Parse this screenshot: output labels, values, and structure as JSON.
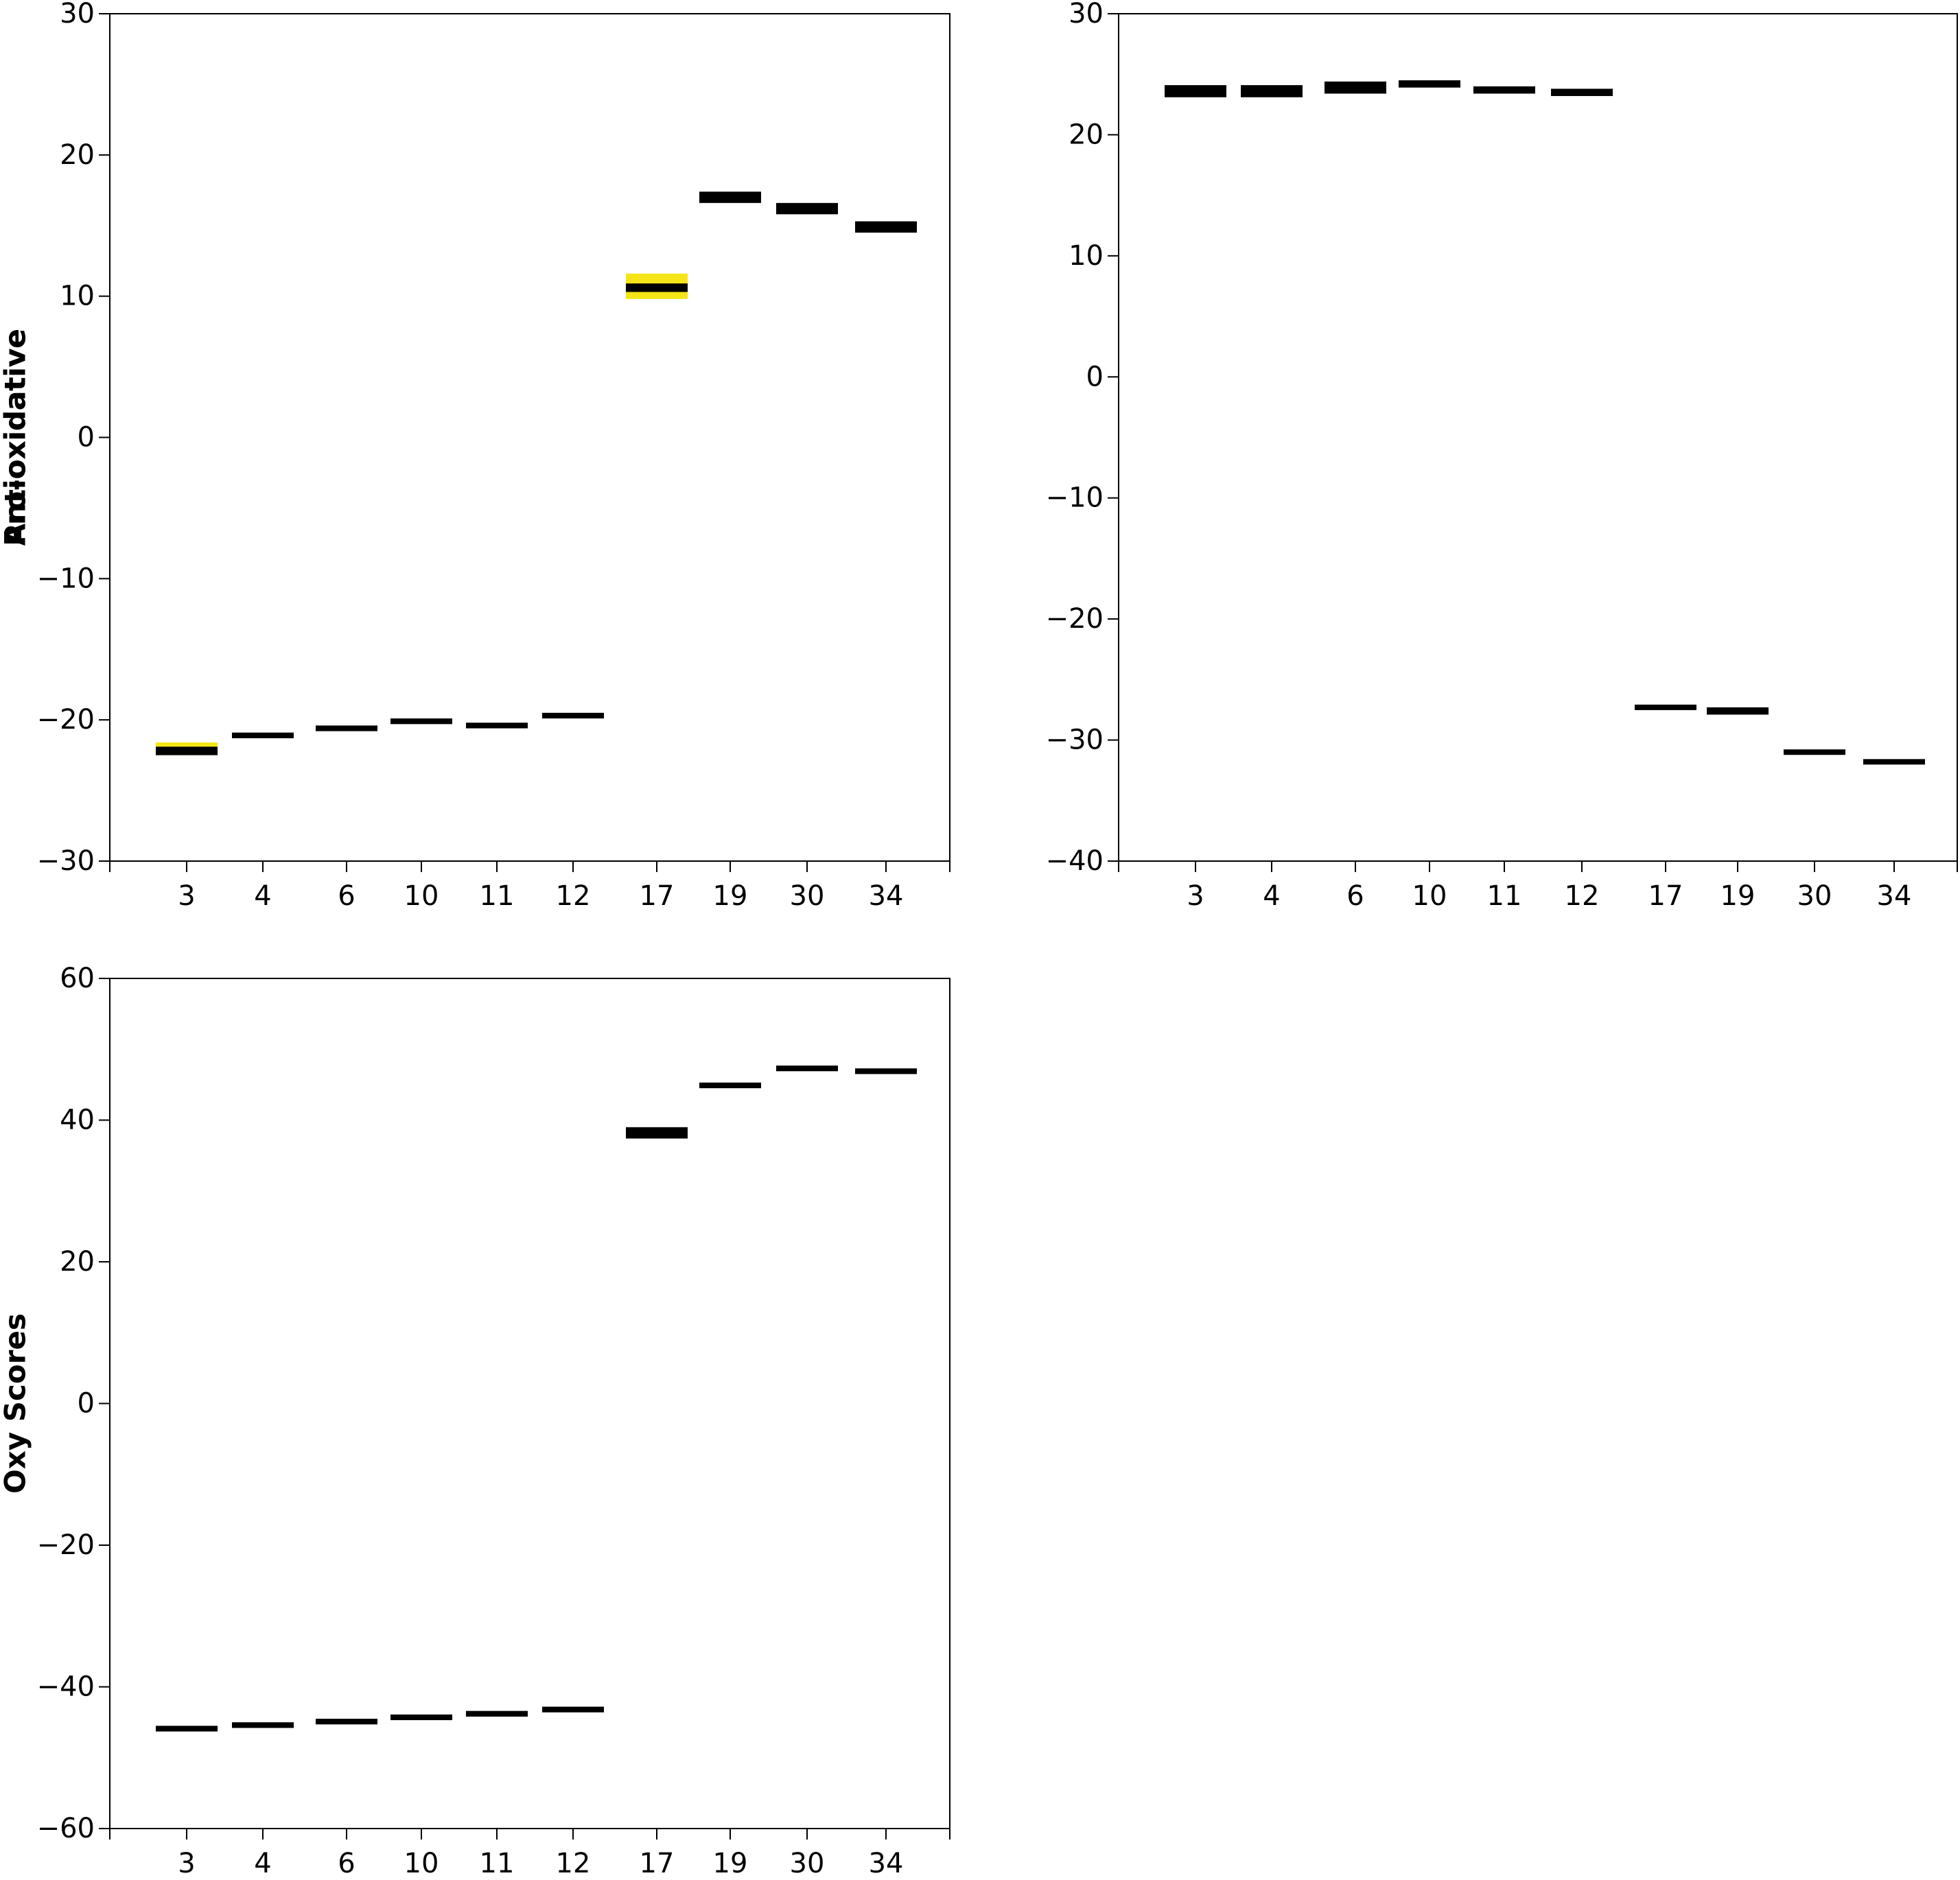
{
  "figure": {
    "background": "#ffffff",
    "mark_color": "#000000",
    "highlight_color": "#f5e416"
  },
  "chart_data": [
    {
      "type": "range",
      "panel": "top-left",
      "title": "",
      "xlabel": "",
      "ylabel": "Pro-oxidative",
      "ylim": [
        -30,
        30
      ],
      "yticks": [
        -30,
        -20,
        -10,
        0,
        10,
        20,
        30
      ],
      "ytick_labels": [
        "−30",
        "−20",
        "−10",
        "0",
        "10",
        "20",
        "30"
      ],
      "categories": [
        "3",
        "4",
        "6",
        "10",
        "11",
        "12",
        "17",
        "19",
        "30",
        "34"
      ],
      "series": [
        {
          "values": [
            -22.2,
            -21.1,
            -20.6,
            -20.1,
            -20.4,
            -19.7,
            10.6,
            17.0,
            16.2,
            14.9
          ],
          "low": [
            -22.5,
            -21.3,
            -20.8,
            -20.3,
            -20.6,
            -19.9,
            10.3,
            16.6,
            15.8,
            14.5
          ],
          "high": [
            -21.9,
            -20.9,
            -20.4,
            -19.9,
            -20.2,
            -19.5,
            10.9,
            17.4,
            16.6,
            15.3
          ],
          "highlight_low": [
            -22.3,
            null,
            null,
            null,
            null,
            null,
            9.8,
            null,
            null,
            null
          ],
          "highlight_high": [
            -21.6,
            null,
            null,
            null,
            null,
            null,
            11.6,
            null,
            null,
            null
          ]
        }
      ],
      "grid": false,
      "legend": "none"
    },
    {
      "type": "range",
      "panel": "top-right",
      "title": "",
      "xlabel": "",
      "ylabel": "Antioxidative",
      "ylim": [
        -40,
        30
      ],
      "yticks": [
        -40,
        -30,
        -20,
        -10,
        0,
        10,
        20,
        30
      ],
      "ytick_labels": [
        "−40",
        "−30",
        "−20",
        "−10",
        "0",
        "10",
        "20",
        "30"
      ],
      "categories": [
        "3",
        "4",
        "6",
        "10",
        "11",
        "12",
        "17",
        "19",
        "30",
        "34"
      ],
      "series": [
        {
          "values": [
            23.6,
            23.6,
            23.9,
            24.2,
            23.7,
            23.5,
            -27.3,
            -27.6,
            -31.0,
            -31.8
          ],
          "low": [
            23.1,
            23.1,
            23.4,
            23.9,
            23.4,
            23.2,
            -27.5,
            -27.9,
            -31.2,
            -32.0
          ],
          "high": [
            24.1,
            24.1,
            24.4,
            24.5,
            24.0,
            23.8,
            -27.1,
            -27.3,
            -30.8,
            -31.6
          ],
          "highlight_low": [
            null,
            null,
            null,
            null,
            null,
            null,
            null,
            null,
            null,
            null
          ],
          "highlight_high": [
            null,
            null,
            null,
            null,
            null,
            null,
            null,
            null,
            null,
            null
          ]
        }
      ],
      "grid": false,
      "legend": "none"
    },
    {
      "type": "range",
      "panel": "bottom-left",
      "title": "",
      "xlabel": "",
      "ylabel": "Oxy Scores",
      "ylim": [
        -60,
        60
      ],
      "yticks": [
        -60,
        -40,
        -20,
        0,
        20,
        40,
        60
      ],
      "ytick_labels": [
        "−60",
        "−40",
        "−20",
        "0",
        "20",
        "40",
        "60"
      ],
      "categories": [
        "3",
        "4",
        "6",
        "10",
        "11",
        "12",
        "17",
        "19",
        "30",
        "34"
      ],
      "series": [
        {
          "values": [
            -45.9,
            -45.4,
            -44.9,
            -44.3,
            -43.8,
            -43.2,
            38.2,
            44.9,
            47.3,
            46.9
          ],
          "low": [
            -46.3,
            -45.8,
            -45.3,
            -44.7,
            -44.2,
            -43.6,
            37.4,
            44.5,
            46.9,
            46.5
          ],
          "high": [
            -45.5,
            -45.0,
            -44.5,
            -43.9,
            -43.4,
            -42.8,
            39.0,
            45.3,
            47.7,
            47.3
          ],
          "highlight_low": [
            null,
            null,
            null,
            null,
            null,
            null,
            null,
            null,
            null,
            null
          ],
          "highlight_high": [
            null,
            null,
            null,
            null,
            null,
            null,
            null,
            null,
            null,
            null
          ]
        }
      ],
      "grid": false,
      "legend": "none"
    }
  ]
}
